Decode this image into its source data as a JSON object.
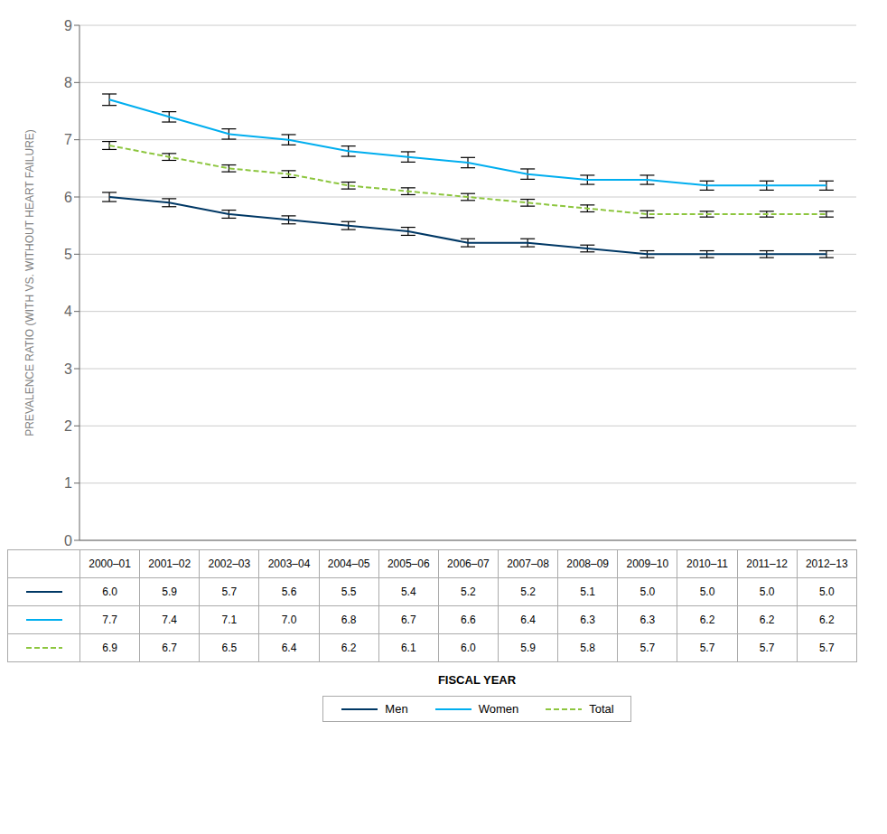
{
  "chart_data": {
    "type": "line",
    "ylabel": "PREVALENCE RATIO (WITH VS. WITHOUT HEART FAILURE)",
    "xlabel": "FISCAL YEAR",
    "categories": [
      "2000–01",
      "2001–02",
      "2002–03",
      "2003–04",
      "2004–05",
      "2005–06",
      "2006–07",
      "2007–08",
      "2008–09",
      "2009–10",
      "2010–11",
      "2011–12",
      "2012–13"
    ],
    "series": [
      {
        "name": "Men",
        "color": "#003865",
        "line_style": "solid",
        "values": [
          6.0,
          5.9,
          5.7,
          5.6,
          5.5,
          5.4,
          5.2,
          5.2,
          5.1,
          5.0,
          5.0,
          5.0,
          5.0
        ],
        "value_labels": [
          "6.0",
          "5.9",
          "5.7",
          "5.6",
          "5.5",
          "5.4",
          "5.2",
          "5.2",
          "5.1",
          "5.0",
          "5.0",
          "5.0",
          "5.0"
        ],
        "errors": [
          0.08,
          0.07,
          0.07,
          0.07,
          0.07,
          0.07,
          0.07,
          0.07,
          0.06,
          0.06,
          0.06,
          0.06,
          0.06
        ]
      },
      {
        "name": "Women",
        "color": "#00AEEF",
        "line_style": "solid",
        "values": [
          7.7,
          7.4,
          7.1,
          7.0,
          6.8,
          6.7,
          6.6,
          6.4,
          6.3,
          6.3,
          6.2,
          6.2,
          6.2
        ],
        "value_labels": [
          "7.7",
          "7.4",
          "7.1",
          "7.0",
          "6.8",
          "6.7",
          "6.6",
          "6.4",
          "6.3",
          "6.3",
          "6.2",
          "6.2",
          "6.2"
        ],
        "errors": [
          0.1,
          0.09,
          0.09,
          0.09,
          0.09,
          0.09,
          0.09,
          0.09,
          0.08,
          0.08,
          0.08,
          0.08,
          0.08
        ]
      },
      {
        "name": "Total",
        "color": "#8DC63F",
        "line_style": "dashed",
        "values": [
          6.9,
          6.7,
          6.5,
          6.4,
          6.2,
          6.1,
          6.0,
          5.9,
          5.8,
          5.7,
          5.7,
          5.7,
          5.7
        ],
        "value_labels": [
          "6.9",
          "6.7",
          "6.5",
          "6.4",
          "6.2",
          "6.1",
          "6.0",
          "5.9",
          "5.8",
          "5.7",
          "5.7",
          "5.7",
          "5.7"
        ],
        "errors": [
          0.07,
          0.06,
          0.06,
          0.06,
          0.06,
          0.06,
          0.06,
          0.06,
          0.06,
          0.06,
          0.05,
          0.05,
          0.05
        ]
      }
    ],
    "ylim": [
      0,
      9
    ],
    "yticks": [
      0,
      1,
      2,
      3,
      4,
      5,
      6,
      7,
      8,
      9
    ],
    "grid": true,
    "legend": "bottom"
  }
}
